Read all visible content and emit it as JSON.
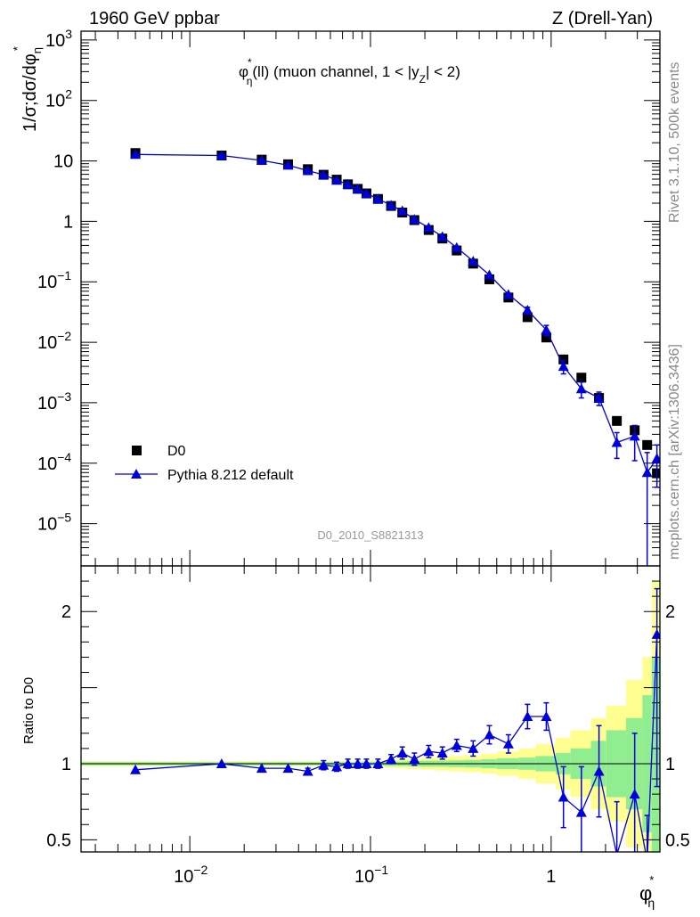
{
  "chart_data": [
    {
      "panel": "main",
      "type": "scatter",
      "header_left": "1960 GeV ppbar",
      "header_right": "Z (Drell-Yan)",
      "title": "φη*(ll) (muon channel, 1 < |yZ| < 2)",
      "title_parts": {
        "phi": "φ",
        "phi_sup": "*",
        "phi_sub": "η",
        "mid": "(ll) (muon channel, 1 < |y",
        "y_sub": "Z",
        "end": "| < 2)"
      },
      "ylabel": "1/σ;dσ/dφη*",
      "ylabel_parts": {
        "main": "1/σ;dσ/dφ",
        "sub": "η",
        "sup": "*"
      },
      "x_scale": "log",
      "y_scale": "log",
      "xlim": [
        0.0025,
        4.0
      ],
      "ylim": [
        2e-06,
        1400
      ],
      "x_tick_labels": [
        {
          "value": 0.01,
          "base": "10",
          "exp": "−2"
        },
        {
          "value": 0.1,
          "base": "10",
          "exp": "−1"
        },
        {
          "value": 1,
          "base": "1",
          "exp": ""
        }
      ],
      "y_tick_labels": [
        {
          "value": 1000,
          "base": "10",
          "exp": "3"
        },
        {
          "value": 100,
          "base": "10",
          "exp": "2"
        },
        {
          "value": 10,
          "base": "10",
          "exp": ""
        },
        {
          "value": 1,
          "base": "1",
          "exp": ""
        },
        {
          "value": 0.1,
          "base": "10",
          "exp": "−1"
        },
        {
          "value": 0.01,
          "base": "10",
          "exp": "−2"
        },
        {
          "value": 0.001,
          "base": "10",
          "exp": "−3"
        },
        {
          "value": 0.0001,
          "base": "10",
          "exp": "−4"
        },
        {
          "value": 1e-05,
          "base": "10",
          "exp": "−5"
        }
      ],
      "side_label_top": "Rivet 3.1.10,  500k events",
      "side_label_bottom": "mcplots.cern.ch [arXiv:1306.3436]",
      "watermark": "D0_2010_S8821313",
      "legend_position": "lower-left",
      "series": [
        {
          "name": "D0",
          "marker": "square",
          "color": "#000000",
          "x": [
            0.005,
            0.015,
            0.025,
            0.035,
            0.045,
            0.055,
            0.065,
            0.075,
            0.085,
            0.095,
            0.11,
            0.13,
            0.15,
            0.175,
            0.21,
            0.25,
            0.3,
            0.37,
            0.455,
            0.58,
            0.74,
            0.94,
            1.17,
            1.47,
            1.84,
            2.31,
            2.9,
            3.4,
            3.85
          ],
          "y": [
            13.5,
            12.3,
            10.5,
            8.8,
            7.3,
            5.9,
            4.9,
            4.1,
            3.45,
            2.9,
            2.35,
            1.8,
            1.4,
            1.05,
            0.72,
            0.52,
            0.33,
            0.2,
            0.11,
            0.055,
            0.026,
            0.012,
            0.0052,
            0.0026,
            0.0012,
            0.0005,
            0.00035,
            0.0002,
            6.8e-05
          ]
        },
        {
          "name": "Pythia 8.212 default",
          "marker": "triangle",
          "color": "#0000dd",
          "x": [
            0.005,
            0.015,
            0.025,
            0.035,
            0.045,
            0.055,
            0.065,
            0.075,
            0.085,
            0.095,
            0.11,
            0.13,
            0.15,
            0.175,
            0.21,
            0.25,
            0.3,
            0.37,
            0.455,
            0.58,
            0.74,
            0.94,
            1.17,
            1.47,
            1.84,
            2.31,
            2.9,
            3.4,
            3.85
          ],
          "y": [
            12.8,
            12.3,
            10.2,
            8.5,
            6.9,
            5.9,
            4.8,
            4.1,
            3.45,
            2.9,
            2.35,
            1.85,
            1.5,
            1.08,
            0.79,
            0.56,
            0.37,
            0.22,
            0.13,
            0.062,
            0.034,
            0.016,
            0.004,
            0.0017,
            0.0012,
            0.00022,
            0.00028,
            7e-05,
            0.00012
          ],
          "yerr_lo": [
            0,
            0,
            0,
            0,
            0,
            0,
            0,
            0,
            0,
            0,
            0,
            0,
            0,
            0,
            0,
            0,
            0,
            0,
            0,
            0,
            0.004,
            0.003,
            0.001,
            0.0005,
            0.0003,
            0.0001,
            0.00017,
            7e-05,
            8e-05
          ],
          "yerr_hi": [
            0,
            0,
            0,
            0,
            0,
            0,
            0,
            0,
            0,
            0,
            0,
            0,
            0,
            0,
            0,
            0,
            0,
            0,
            0,
            0,
            0.004,
            0.003,
            0.001,
            0.0005,
            0.0003,
            0.0001,
            0.00014,
            8e-05,
            8e-05
          ]
        }
      ]
    },
    {
      "panel": "ratio",
      "type": "line",
      "ylabel": "Ratio to D0",
      "x_scale": "log",
      "xlim": [
        0.0025,
        4.0
      ],
      "ylim": [
        0.42,
        2.3
      ],
      "xlabel_parts": {
        "main": "φ",
        "sup": "*",
        "sub": "η"
      },
      "y_tick_labels": [
        {
          "value": 0.5,
          "label": "0.5"
        },
        {
          "value": 1,
          "label": "1"
        },
        {
          "value": 2,
          "label": "2"
        }
      ],
      "band_colors": {
        "stat": "#90ee90",
        "total": "#ffff90",
        "reference_line": "#000000"
      },
      "bands": {
        "x_edges": [
          0.0025,
          0.01,
          0.02,
          0.03,
          0.04,
          0.05,
          0.06,
          0.07,
          0.08,
          0.09,
          0.1,
          0.12,
          0.14,
          0.16,
          0.19,
          0.23,
          0.27,
          0.33,
          0.41,
          0.5,
          0.66,
          0.82,
          1.06,
          1.28,
          1.66,
          2.02,
          2.6,
          3.2,
          3.6,
          4.0
        ],
        "stat_half_width": [
          0.01,
          0.01,
          0.01,
          0.01,
          0.01,
          0.01,
          0.01,
          0.01,
          0.01,
          0.012,
          0.012,
          0.015,
          0.015,
          0.018,
          0.02,
          0.02,
          0.022,
          0.025,
          0.03,
          0.035,
          0.04,
          0.05,
          0.07,
          0.1,
          0.15,
          0.22,
          0.3,
          0.45,
          0.7
        ],
        "total_half_width": [
          0.015,
          0.015,
          0.015,
          0.015,
          0.015,
          0.015,
          0.015,
          0.015,
          0.018,
          0.02,
          0.022,
          0.025,
          0.03,
          0.035,
          0.04,
          0.045,
          0.05,
          0.055,
          0.065,
          0.08,
          0.1,
          0.13,
          0.17,
          0.22,
          0.3,
          0.38,
          0.55,
          0.7,
          1.2
        ]
      },
      "series": [
        {
          "name": "Pythia 8.212 default",
          "color": "#0000dd",
          "x": [
            0.005,
            0.015,
            0.025,
            0.035,
            0.045,
            0.055,
            0.065,
            0.075,
            0.085,
            0.095,
            0.11,
            0.13,
            0.15,
            0.175,
            0.21,
            0.25,
            0.3,
            0.37,
            0.455,
            0.58,
            0.74,
            0.94,
            1.17,
            1.47,
            1.84,
            2.31,
            2.9,
            3.4,
            3.85
          ],
          "y": [
            0.96,
            1.0,
            0.97,
            0.97,
            0.95,
            0.99,
            0.98,
            1.0,
            1.0,
            1.0,
            1.0,
            1.03,
            1.07,
            1.03,
            1.08,
            1.07,
            1.12,
            1.1,
            1.19,
            1.13,
            1.31,
            1.31,
            0.78,
            0.68,
            0.95,
            0.4,
            0.8,
            0.36,
            1.85
          ],
          "yerr_lo": [
            0,
            0,
            0,
            0,
            0.02,
            0.03,
            0.03,
            0.03,
            0.03,
            0.03,
            0.03,
            0.03,
            0.04,
            0.04,
            0.04,
            0.04,
            0.04,
            0.05,
            0.06,
            0.06,
            0.08,
            0.09,
            0.2,
            0.3,
            0.3,
            0.35,
            0.4,
            0.3,
            1.0
          ],
          "yerr_hi": [
            0,
            0,
            0,
            0,
            0.02,
            0.03,
            0.03,
            0.03,
            0.03,
            0.03,
            0.03,
            0.03,
            0.04,
            0.04,
            0.04,
            0.04,
            0.04,
            0.05,
            0.06,
            0.06,
            0.08,
            0.09,
            0.2,
            0.3,
            0.3,
            0.35,
            0.4,
            0.3,
            0.3
          ]
        }
      ]
    }
  ]
}
